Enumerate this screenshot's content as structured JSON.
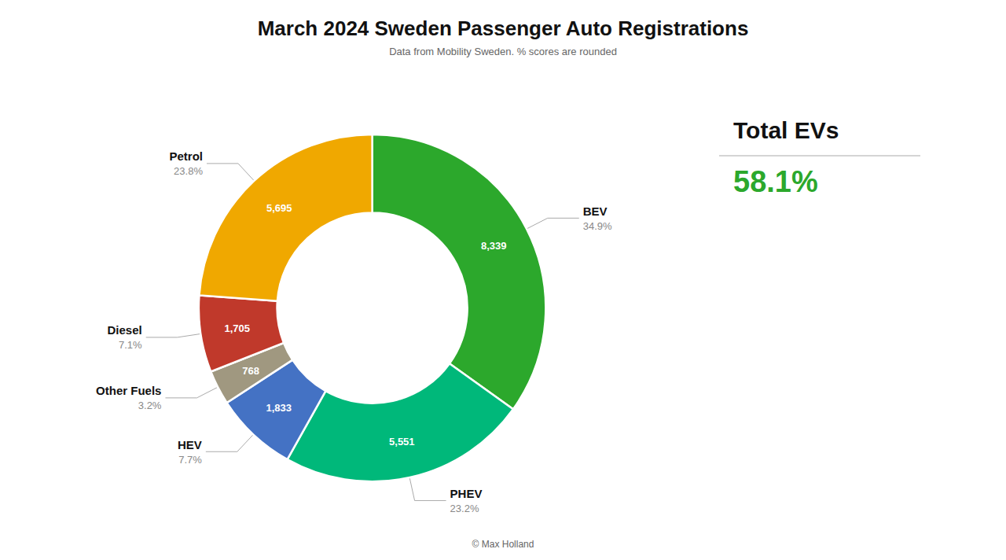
{
  "chart_data": {
    "type": "donut",
    "title": "March 2024 Sweden Passenger Auto Registrations",
    "subtitle": "Data from Mobility Sweden. % scores are rounded",
    "footer": "© Max Holland",
    "categories": [
      "BEV",
      "PHEV",
      "HEV",
      "Other Fuels",
      "Diesel",
      "Petrol"
    ],
    "values": [
      8339,
      5551,
      1833,
      768,
      1705,
      5695
    ],
    "value_labels": [
      "8,339",
      "5,551",
      "1,833",
      "768",
      "1,705",
      "5,695"
    ],
    "percentages": [
      34.9,
      23.2,
      7.7,
      3.2,
      7.1,
      23.8
    ],
    "percentage_labels": [
      "34.9%",
      "23.2%",
      "7.7%",
      "3.2%",
      "7.1%",
      "23.8%"
    ],
    "colors": [
      "#2ca82c",
      "#00b87a",
      "#4472c4",
      "#a09880",
      "#c0392b",
      "#f0a800"
    ],
    "data_labels": true,
    "annotations": [
      {
        "text": "Total EVs"
      },
      {
        "text": "58.1%",
        "color": "#2ca82c"
      }
    ]
  }
}
